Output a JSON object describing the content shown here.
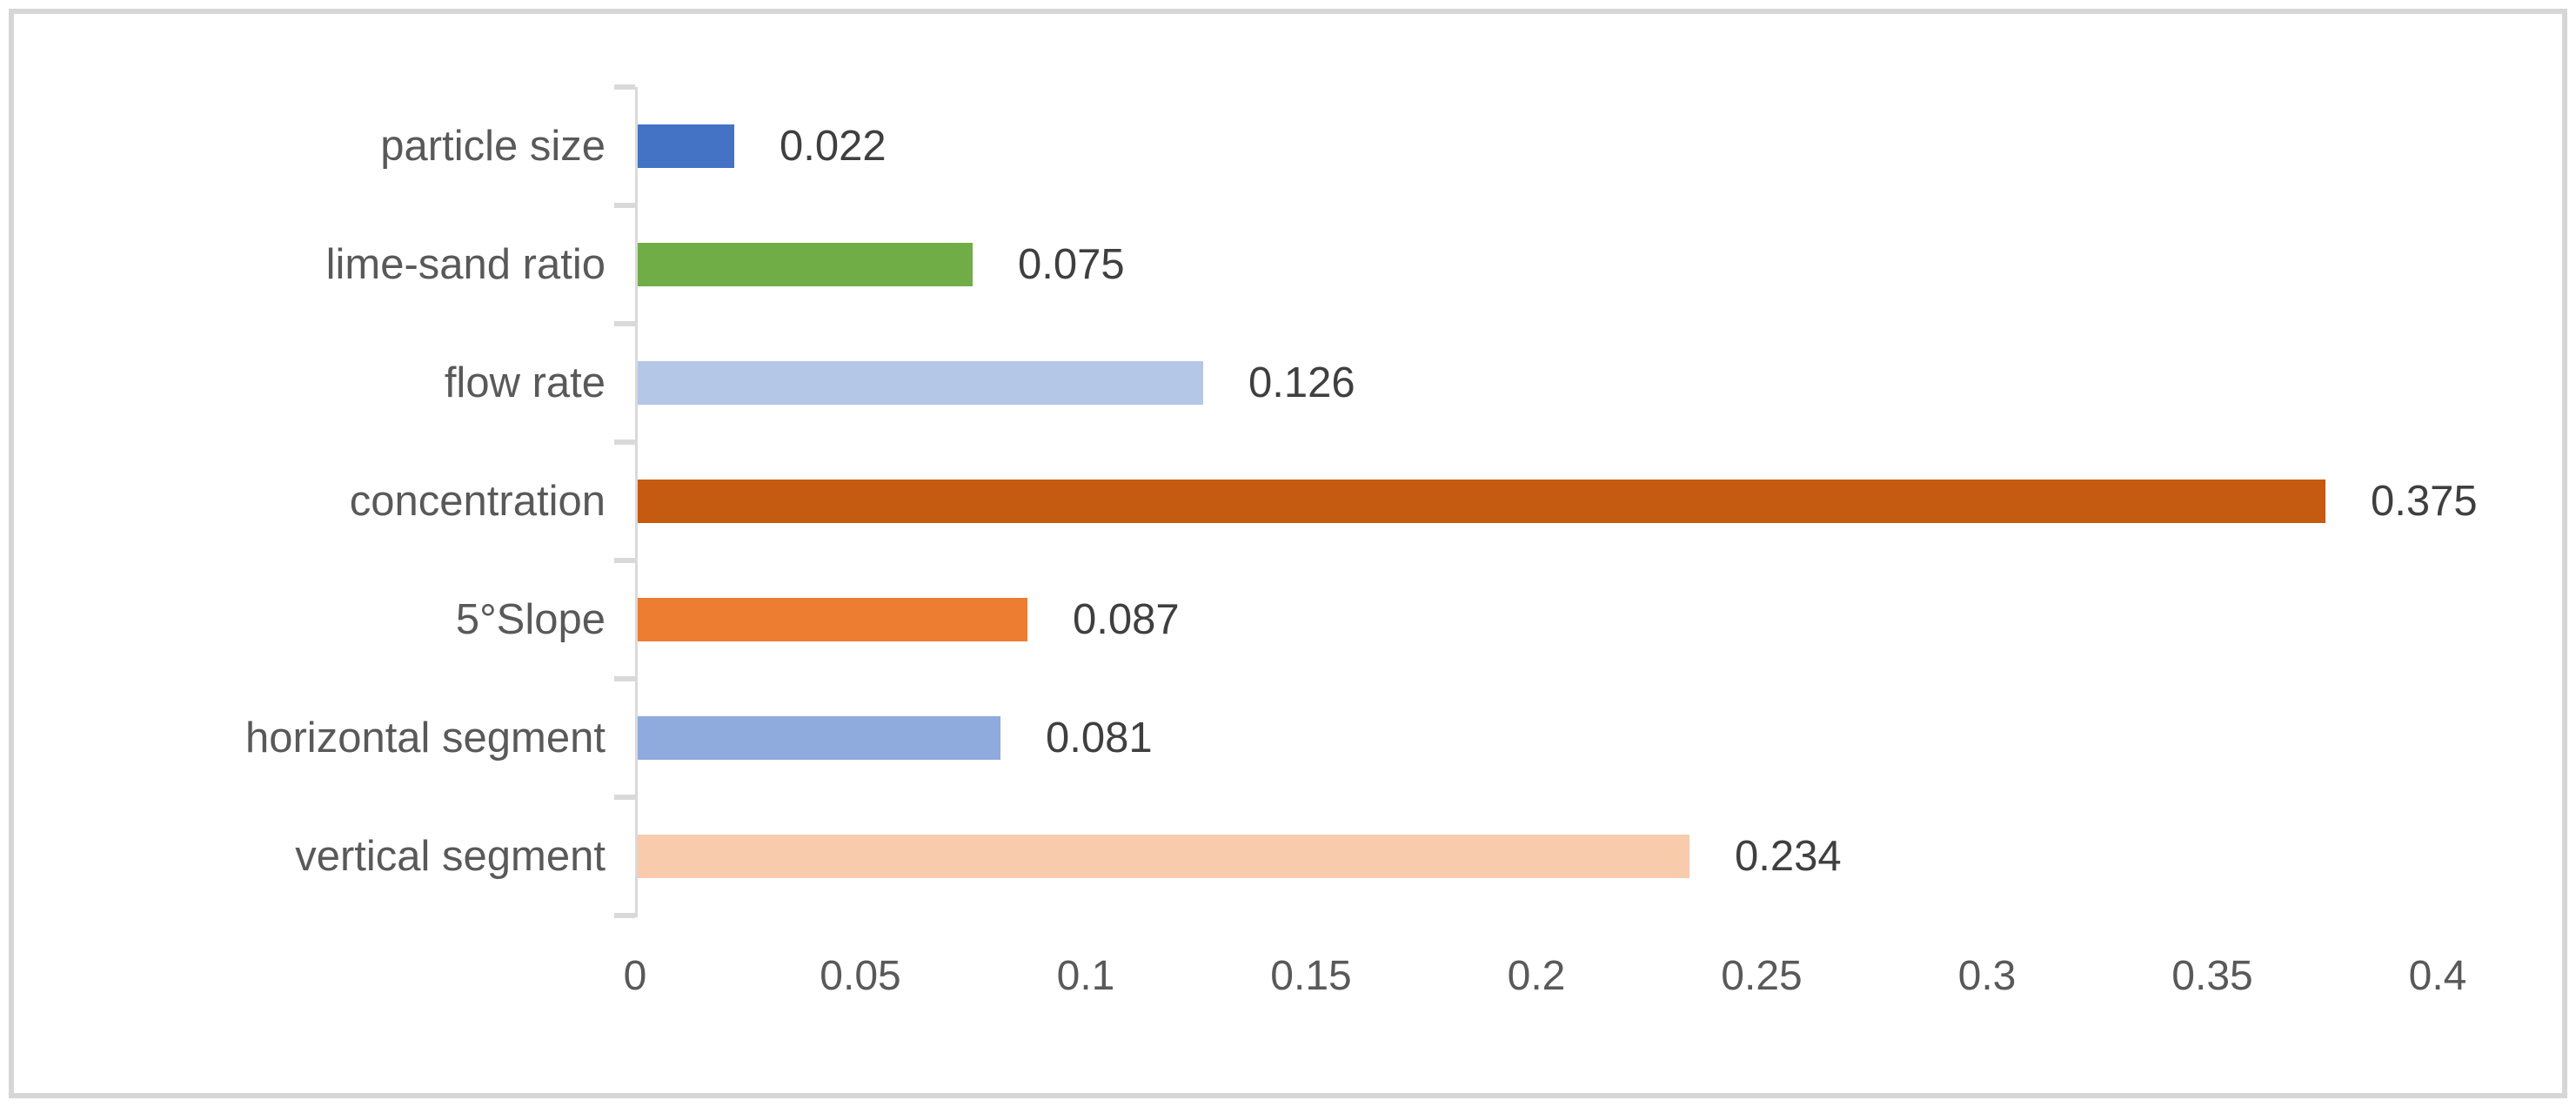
{
  "colors": {
    "background": "#ffffff",
    "frame_border": "#d6d6d6",
    "axis_line": "#d9d9d9",
    "category_text": "#595959",
    "value_text": "#3f3f3f",
    "tick_text": "#595959"
  },
  "chart_data": {
    "type": "bar",
    "orientation": "horizontal",
    "title": "",
    "xlabel": "",
    "ylabel": "",
    "grid": false,
    "legend": "none",
    "categories": [
      "particle size",
      "lime-sand ratio",
      "flow rate",
      "concentration",
      "5°Slope",
      "horizontal segment",
      "vertical segment"
    ],
    "values": [
      0.022,
      0.075,
      0.126,
      0.375,
      0.087,
      0.081,
      0.234
    ],
    "value_labels": [
      "0.022",
      "0.075",
      "0.126",
      "0.375",
      "0.087",
      "0.081",
      "0.234"
    ],
    "bar_colors": [
      "#4472c4",
      "#70ad47",
      "#b4c7e7",
      "#c55a11",
      "#ed7d31",
      "#8faadc",
      "#f8cbad"
    ],
    "xlim": [
      0,
      0.4
    ],
    "x_ticks": [
      "0",
      "0.05",
      "0.1",
      "0.15",
      "0.2",
      "0.25",
      "0.3",
      "0.35",
      "0.4"
    ]
  }
}
